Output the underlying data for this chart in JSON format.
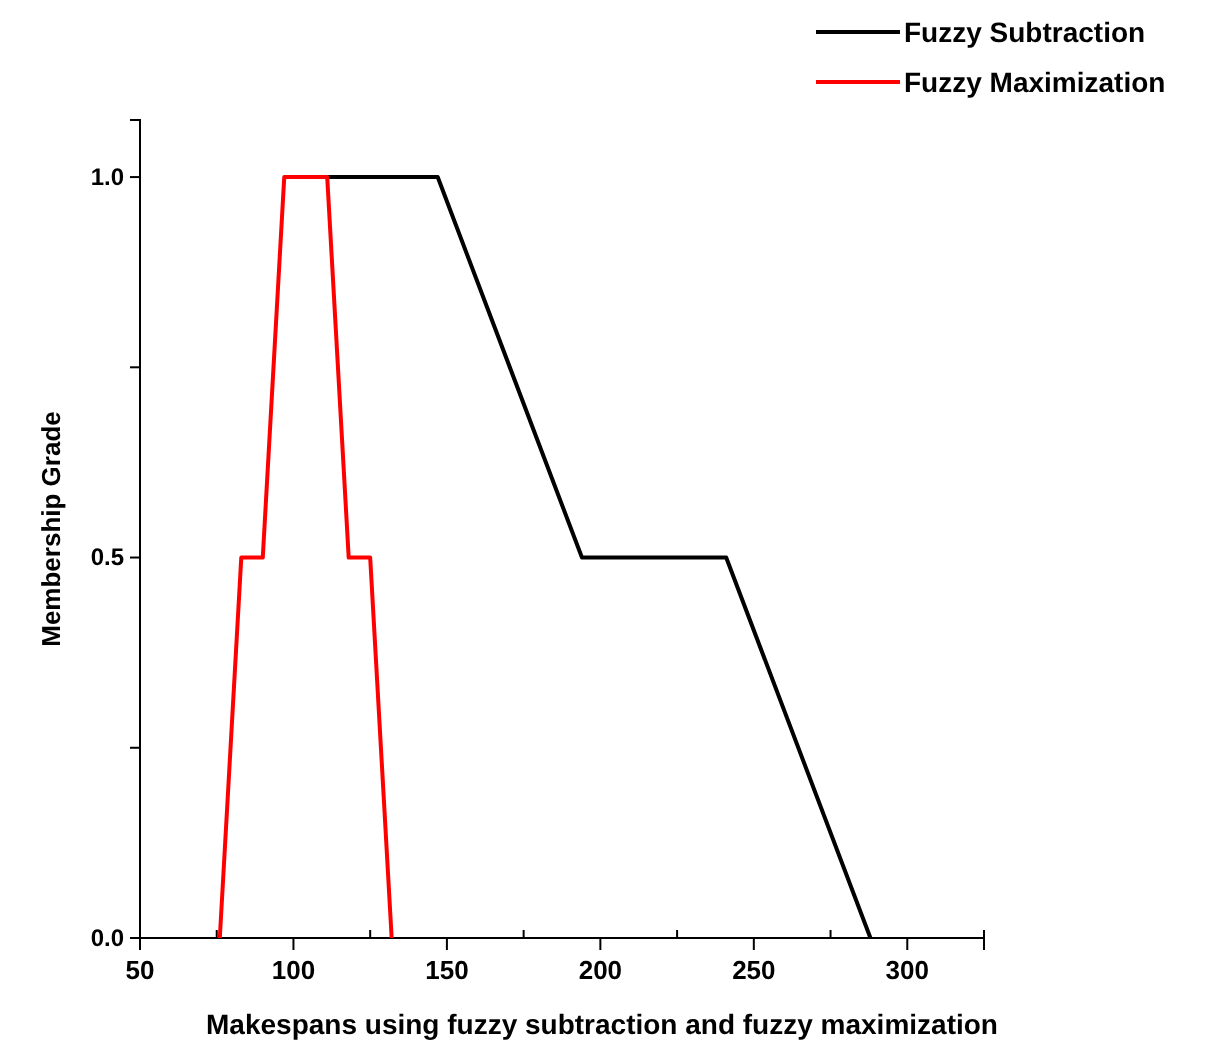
{
  "chart_data": {
    "type": "line",
    "xlabel": "Makespans using fuzzy subtraction and fuzzy maximization",
    "ylabel": "Membership Grade",
    "xlim": [
      50,
      325
    ],
    "xticks": [
      50,
      100,
      150,
      200,
      250,
      300
    ],
    "ylim": [
      0,
      1.075
    ],
    "yticks": [
      {
        "value": 0,
        "label": "0.0"
      },
      {
        "value": 0.25,
        "label": null
      },
      {
        "value": 0.5,
        "label": "0.5"
      },
      {
        "value": 0.75,
        "label": null
      },
      {
        "value": 1,
        "label": "1.0"
      }
    ],
    "grid": false,
    "legend": "top right",
    "marker": "none",
    "line_style": "solid",
    "series": [
      {
        "name": "Fuzzy Subtraction",
        "color": "#000000",
        "x": [
          111,
          147,
          194,
          241,
          288
        ],
        "values": [
          1,
          1,
          0.5,
          0.5,
          0
        ]
      },
      {
        "name": "Fuzzy Maximization",
        "color": "#ff0000",
        "x": [
          76,
          83,
          90,
          97,
          111,
          118,
          125,
          132
        ],
        "values": [
          0,
          0.5,
          0.5,
          1,
          1,
          0.5,
          0.5,
          0
        ]
      }
    ]
  }
}
